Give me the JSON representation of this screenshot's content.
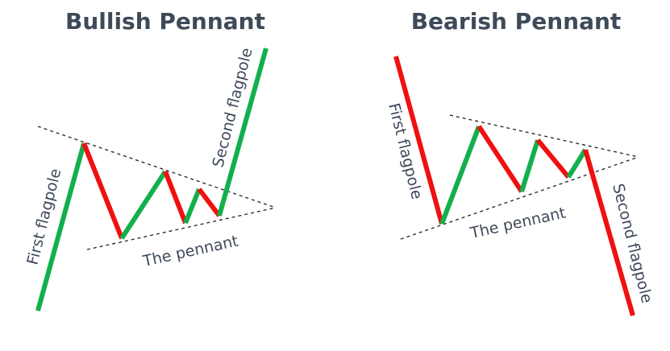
{
  "colors": {
    "up": "#12b04c",
    "down": "#f01010",
    "text": "#3f4a59"
  },
  "bullish": {
    "title": "Bullish Pennant",
    "first_flagpole_label": "First flagpole",
    "second_flagpole_label": "Second flagpole",
    "pennant_label": "The pennant"
  },
  "bearish": {
    "title": "Bearish Pennant",
    "first_flagpole_label": "First flagpole",
    "second_flagpole_label": "Second flagpole",
    "pennant_label": "The pennant"
  }
}
